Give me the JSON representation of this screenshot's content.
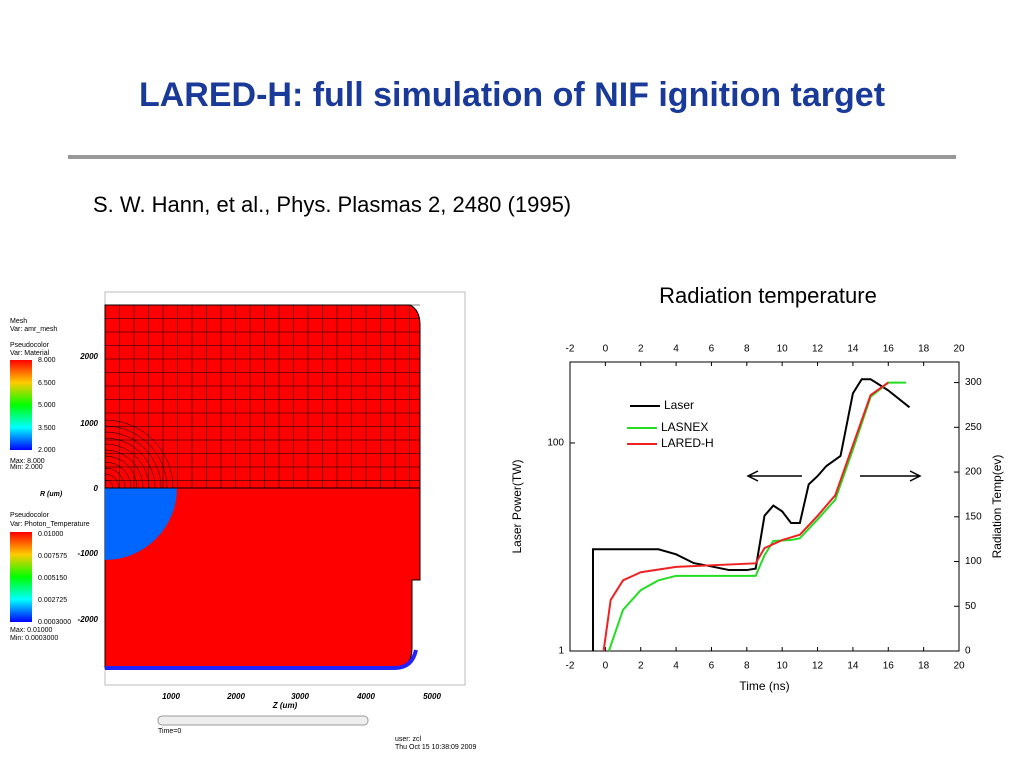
{
  "title": "LARED-H: full simulation of NIF ignition target",
  "citation": "S. W. Hann, et al., Phys. Plasmas 2, 2480 (1995)",
  "simulation": {
    "legend1": [
      "Mesh",
      "Var: amr_mesh",
      "Pseudocolor",
      "Var: Material",
      "8.000",
      "6.500",
      "5.000",
      "3.500",
      "2.000",
      "Max: 8.000",
      "Min: 2.000"
    ],
    "legend2": [
      "Pseudocolor",
      "Var: Photon_Temperature",
      "0.01000",
      "0.007575",
      "0.005150",
      "0.002725",
      "0.0003000",
      "Max: 0.01000",
      "Min: 0.0003000"
    ],
    "r_ticks": [
      "2000",
      "1000",
      "0",
      "-1000",
      "-2000"
    ],
    "z_ticks": [
      "1000",
      "2000",
      "3000",
      "4000",
      "5000"
    ],
    "r_label": "R\n(um)",
    "z_label": "Z  (um)",
    "time": "Time=0",
    "user": "user: zcl",
    "date": "Thu Oct 15 10:38:09 2009"
  },
  "chart_data": {
    "type": "line",
    "title": "Radiation temperature",
    "xlabel": "Time (ns)",
    "ylabel": "Laser Power(TW)",
    "y2label": "Radiation Temp(ev)",
    "xlim": [
      -2,
      20
    ],
    "xticks": [
      -2,
      0,
      2,
      4,
      6,
      8,
      10,
      12,
      14,
      16,
      18,
      20
    ],
    "ylim": [
      1,
      600
    ],
    "yticks": [
      1,
      100
    ],
    "log_y": true,
    "y2lim": [
      0,
      323
    ],
    "y2ticks": [
      0,
      50,
      100,
      150,
      200,
      250,
      300
    ],
    "legend": "upper left",
    "series": [
      {
        "name": "Laser",
        "color": "#000000",
        "axis": "y",
        "x": [
          -0.7,
          -0.7,
          1,
          3,
          4,
          5,
          6,
          7,
          8,
          8.5,
          9,
          9.5,
          10,
          10.5,
          11,
          11.5,
          12,
          12.5,
          13.3,
          14,
          14.5,
          15,
          16,
          17.2
        ],
        "values": [
          1,
          9.5,
          9.5,
          9.5,
          8.5,
          7,
          6.5,
          6,
          6,
          6.2,
          20,
          25,
          22,
          17,
          17,
          40,
          48,
          60,
          75,
          300,
          410,
          410,
          320,
          220
        ]
      },
      {
        "name": "LASNEX",
        "color": "#22dd22",
        "axis": "y2",
        "x": [
          0.2,
          1,
          2,
          3,
          4,
          8.5,
          9,
          9.5,
          10.5,
          11,
          12,
          13,
          14,
          15,
          16,
          17
        ],
        "values": [
          0,
          46,
          68,
          79,
          84,
          84,
          107,
          123,
          124,
          126,
          147,
          169,
          225,
          284,
          300,
          300
        ]
      },
      {
        "name": "LARED-H",
        "color": "#ee2222",
        "axis": "y2",
        "x": [
          -0.1,
          0.3,
          1,
          2,
          4,
          8.5,
          9,
          10,
          11,
          12,
          13,
          14,
          15,
          16
        ],
        "values": [
          0,
          57,
          79,
          88,
          94,
          98,
          115,
          124,
          130,
          151,
          174,
          230,
          286,
          300
        ]
      }
    ]
  }
}
